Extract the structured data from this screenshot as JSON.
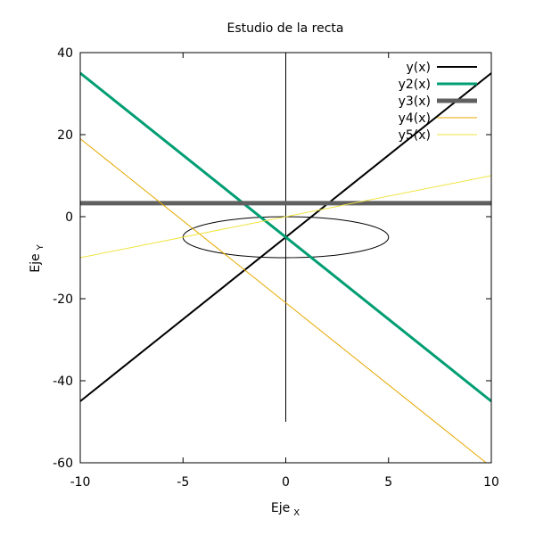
{
  "chart_data": {
    "type": "line",
    "title": "Estudio de la recta",
    "xlabel": "Eje",
    "xlabel_sub": "X",
    "ylabel": "Eje",
    "ylabel_sub": "Y",
    "xlim": [
      -10,
      10
    ],
    "ylim": [
      -60,
      40
    ],
    "xticks": [
      -10,
      -5,
      0,
      5,
      10
    ],
    "yticks": [
      -60,
      -40,
      -20,
      0,
      20,
      40
    ],
    "grid": false,
    "legend_position": "top-right",
    "series": [
      {
        "name": "y(x)",
        "color": "#000000",
        "weight": "medium",
        "x": [
          -10,
          10
        ],
        "y": [
          -45,
          35
        ]
      },
      {
        "name": "y2(x)",
        "color": "#009e73",
        "weight": "thick",
        "x": [
          -10,
          10
        ],
        "y": [
          35,
          -45
        ]
      },
      {
        "name": "y3(x)",
        "color": "#606060",
        "weight": "heavy",
        "x": [
          -10,
          10
        ],
        "y": [
          3.3,
          3.3
        ]
      },
      {
        "name": "y4(x)",
        "color": "#e6a800",
        "weight": "thin",
        "x": [
          -10,
          10
        ],
        "y": [
          19,
          -61
        ]
      },
      {
        "name": "y5(x)",
        "color": "#f0e442",
        "weight": "thin",
        "x": [
          -10,
          10
        ],
        "y": [
          -10,
          10
        ]
      }
    ],
    "annotations": {
      "vertical_line": {
        "x": 0,
        "y_from": -50,
        "y_to": 40
      },
      "circle": {
        "cx": 0,
        "cy": -5,
        "radius": 5
      }
    }
  }
}
